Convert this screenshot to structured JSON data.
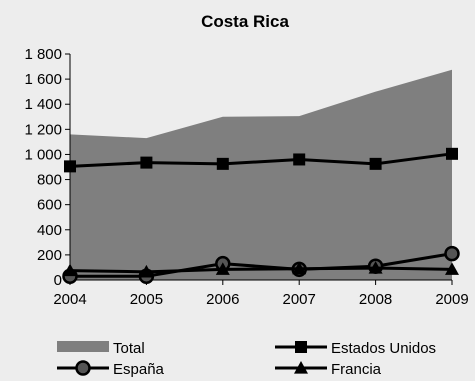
{
  "chart_data": {
    "type": "line",
    "title": "Costa Rica",
    "x": [
      "2004",
      "2005",
      "2006",
      "2007",
      "2008",
      "2009"
    ],
    "ylim": [
      0,
      1800
    ],
    "yticks": [
      0,
      200,
      400,
      600,
      800,
      1000,
      1200,
      1400,
      1600,
      1800
    ],
    "ytick_labels": [
      "0",
      "200",
      "400",
      "600",
      "800",
      "1 000",
      "1 200",
      "1 400",
      "1 600",
      "1 800"
    ],
    "grid": false,
    "legend_position": "bottom",
    "series": [
      {
        "name": "Total",
        "kind": "area",
        "color": "#7f7f7f",
        "values": [
          1160,
          1130,
          1300,
          1305,
          1500,
          1675
        ]
      },
      {
        "name": "Estados Unidos",
        "kind": "line",
        "marker": "square",
        "color": "#000000",
        "values": [
          905,
          935,
          925,
          960,
          925,
          1005
        ]
      },
      {
        "name": "España",
        "kind": "line",
        "marker": "circle",
        "color": "#000000",
        "values": [
          30,
          30,
          130,
          85,
          110,
          210
        ]
      },
      {
        "name": "Francia",
        "kind": "line",
        "marker": "triangle",
        "color": "#000000",
        "values": [
          75,
          65,
          85,
          90,
          95,
          85
        ]
      }
    ]
  }
}
